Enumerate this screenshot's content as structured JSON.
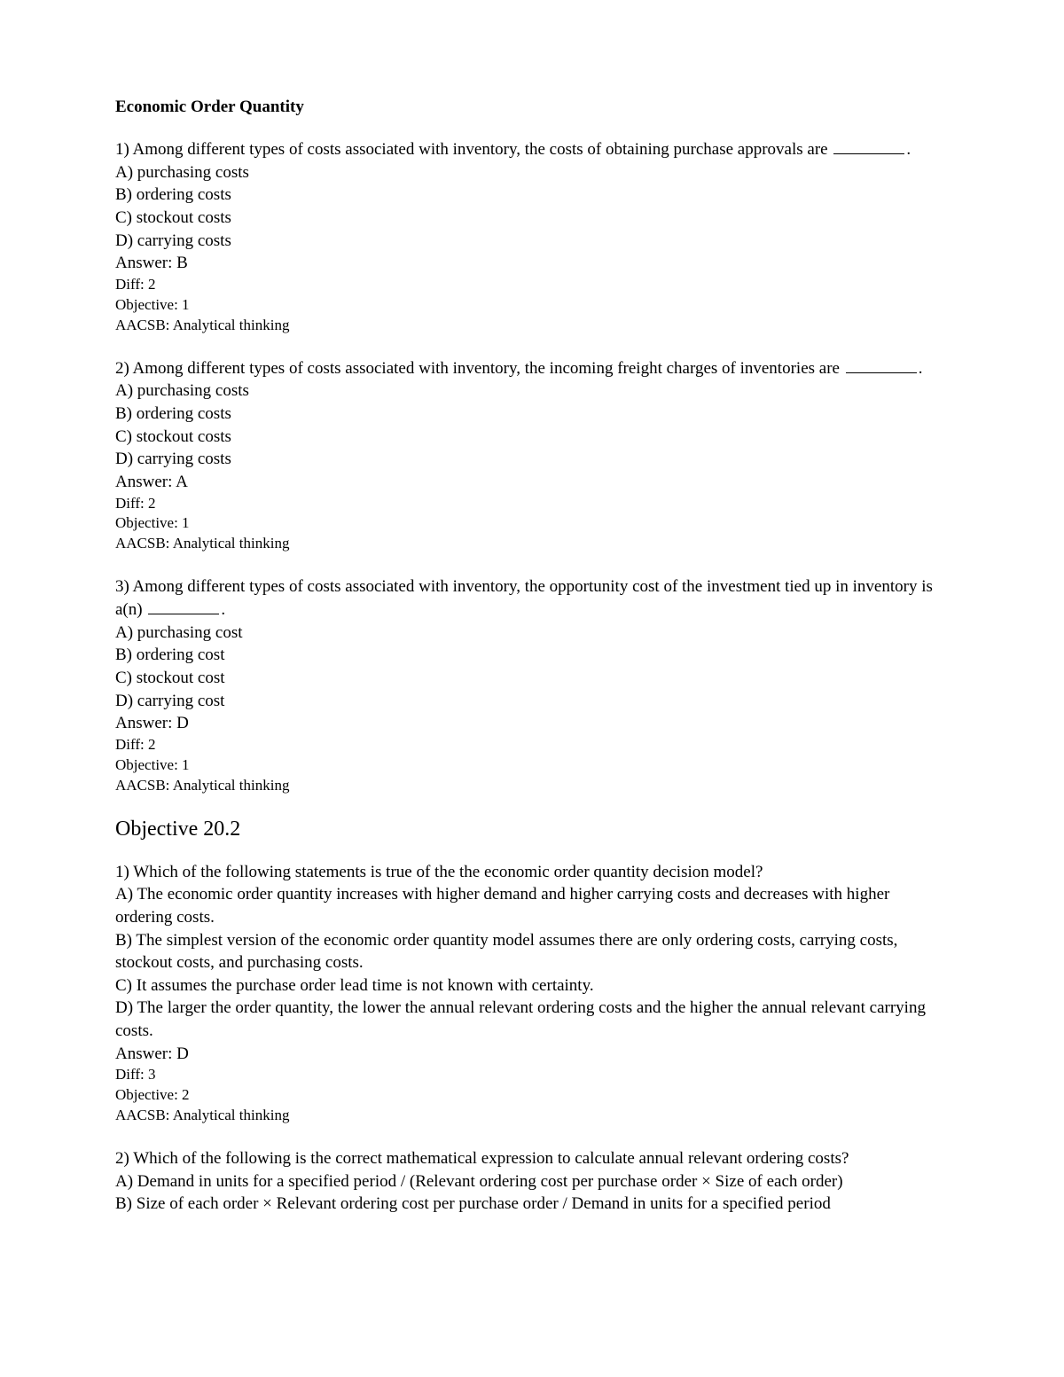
{
  "title": "Economic Order Quantity",
  "q1": {
    "prompt_before": "1) Among different types of costs associated with inventory, the costs of obtaining purchase approvals are ",
    "prompt_after": ".",
    "optA": "A) purchasing costs",
    "optB": "B) ordering costs",
    "optC": "C) stockout costs",
    "optD": "D) carrying costs",
    "answer": "Answer:  B",
    "diff": "Diff: 2",
    "objective": "Objective:  1",
    "aacsb": "AACSB:  Analytical thinking"
  },
  "q2": {
    "prompt_before": "2) Among different types of costs associated with inventory, the incoming freight charges of inventories are ",
    "prompt_after": ".",
    "optA": "A) purchasing costs",
    "optB": "B) ordering costs",
    "optC": "C) stockout costs",
    "optD": "D) carrying costs",
    "answer": "Answer:  A",
    "diff": "Diff: 2",
    "objective": "Objective:  1",
    "aacsb": "AACSB:  Analytical thinking"
  },
  "q3": {
    "prompt_before": "3) Among different types of costs associated with inventory, the opportunity cost of the investment tied up in inventory is a(n) ",
    "prompt_after": ".",
    "optA": "A) purchasing cost",
    "optB": "B) ordering cost",
    "optC": "C) stockout cost",
    "optD": "D) carrying cost",
    "answer": "Answer:  D",
    "diff": "Diff: 2",
    "objective": "Objective:  1",
    "aacsb": "AACSB:  Analytical thinking"
  },
  "section2": "Objective 20.2",
  "s2q1": {
    "prompt": "1) Which of the following statements is true of the the economic order quantity decision model?",
    "optA": "A) The economic order quantity increases with higher demand and higher carrying costs and decreases with higher ordering costs.",
    "optB": "B) The simplest version of the economic order quantity model assumes there are only ordering costs, carrying costs, stockout costs, and purchasing costs.",
    "optC": "C) It assumes the purchase order lead time is not known with certainty.",
    "optD": "D) The larger the order quantity, the lower the annual relevant ordering costs and the higher the annual relevant carrying costs.",
    "answer": "Answer:  D",
    "diff": "Diff: 3",
    "objective": "Objective:  2",
    "aacsb": "AACSB:  Analytical thinking"
  },
  "s2q2": {
    "prompt": "2) Which of the following is the correct mathematical expression to calculate annual relevant ordering costs?",
    "optA": "A) Demand in units for a specified period / (Relevant ordering cost per purchase order × Size of each order)",
    "optB": "B) Size of each order × Relevant ordering cost per purchase order / Demand in units for a specified period"
  }
}
